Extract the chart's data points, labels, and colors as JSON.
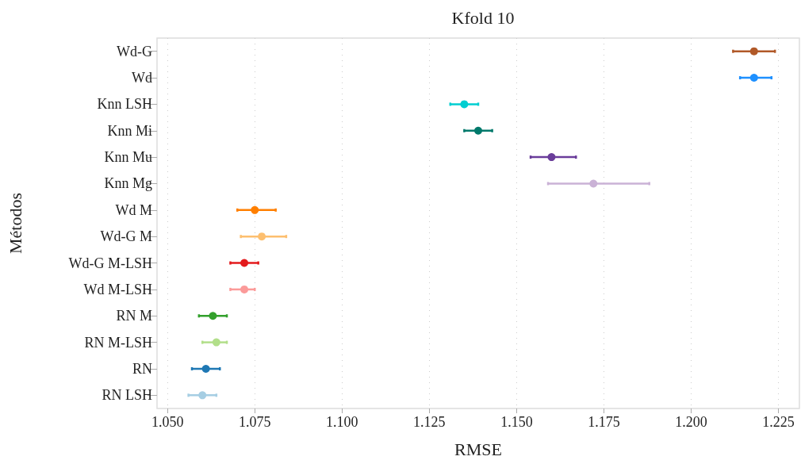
{
  "chart_data": {
    "type": "scatter",
    "title": "Kfold 10",
    "xlabel": "RMSE",
    "ylabel": "Métodos",
    "orientation": "horizontal",
    "categories": [
      "Wd-G",
      "Wd",
      "Knn LSH",
      "Knn Mi",
      "Knn Mu",
      "Knn Mg",
      "Wd M",
      "Wd-G M",
      "Wd-G M-LSH",
      "Wd M-LSH",
      "RN M",
      "RN M-LSH",
      "RN",
      "RN LSH"
    ],
    "values": [
      1.218,
      1.218,
      1.135,
      1.139,
      1.16,
      1.172,
      1.075,
      1.077,
      1.072,
      1.072,
      1.063,
      1.064,
      1.061,
      1.06
    ],
    "errors": [
      [
        1.212,
        1.224
      ],
      [
        1.214,
        1.223
      ],
      [
        1.131,
        1.139
      ],
      [
        1.135,
        1.143
      ],
      [
        1.154,
        1.167
      ],
      [
        1.159,
        1.188
      ],
      [
        1.07,
        1.081
      ],
      [
        1.071,
        1.084
      ],
      [
        1.068,
        1.076
      ],
      [
        1.068,
        1.075
      ],
      [
        1.059,
        1.067
      ],
      [
        1.06,
        1.067
      ],
      [
        1.057,
        1.065
      ],
      [
        1.056,
        1.064
      ]
    ],
    "colors": [
      "#b15928",
      "#1e90ff",
      "#00ced1",
      "#00796b",
      "#6a3d9a",
      "#cab2d6",
      "#ff7f00",
      "#fdbf6f",
      "#e31a1c",
      "#fb9a99",
      "#33a02c",
      "#b2df8a",
      "#1f78b4",
      "#a6cee3"
    ],
    "xlim": [
      1.047,
      1.231
    ],
    "xticks": [
      {
        "value": 1.05,
        "label": "1.050"
      },
      {
        "value": 1.075,
        "label": "1.075"
      },
      {
        "value": 1.1,
        "label": "1.100"
      },
      {
        "value": 1.125,
        "label": "1.125"
      },
      {
        "value": 1.15,
        "label": "1.150"
      },
      {
        "value": 1.175,
        "label": "1.175"
      },
      {
        "value": 1.2,
        "label": "1.200"
      },
      {
        "value": 1.225,
        "label": "1.225"
      }
    ],
    "grid": "x",
    "marker": "circle"
  }
}
